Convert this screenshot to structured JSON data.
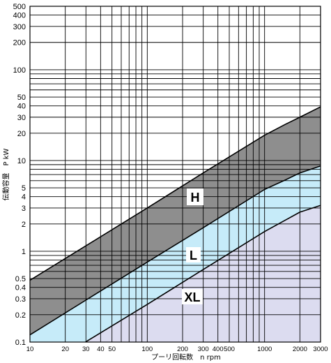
{
  "chart_data": {
    "type": "area",
    "x_scale": "log",
    "y_scale": "log",
    "xlim": [
      10,
      3000
    ],
    "ylim": [
      0.1,
      500
    ],
    "xlabel": "プーリ回転数　n rpm",
    "ylabel": "伝動容量　P kW",
    "x_ticks": [
      10,
      20,
      30,
      40,
      50,
      100,
      200,
      300,
      400,
      500,
      1000,
      2000,
      3000
    ],
    "y_ticks": [
      500,
      400,
      300,
      200,
      100,
      50,
      40,
      30,
      20,
      10,
      5,
      4,
      3,
      2,
      1,
      0.5,
      0.4,
      0.3,
      0.2,
      0.1
    ],
    "grid": true,
    "line_color": "#000000",
    "series": [
      {
        "name": "H",
        "color": "#8e8e8e",
        "upper": [
          [
            10,
            0.48
          ],
          [
            30,
            1.15
          ],
          [
            100,
            3.0
          ],
          [
            300,
            7.3
          ],
          [
            1000,
            19
          ],
          [
            1500,
            25
          ],
          [
            2000,
            30
          ],
          [
            3000,
            39
          ]
        ],
        "lower": [
          [
            10,
            0.12
          ],
          [
            30,
            0.29
          ],
          [
            100,
            0.76
          ],
          [
            300,
            1.82
          ],
          [
            1000,
            4.8
          ],
          [
            1500,
            6.1
          ],
          [
            2000,
            7.3
          ],
          [
            3000,
            8.7
          ]
        ]
      },
      {
        "name": "L",
        "color": "#c6ebf9",
        "upper": [
          [
            10,
            0.12
          ],
          [
            30,
            0.29
          ],
          [
            100,
            0.76
          ],
          [
            300,
            1.82
          ],
          [
            1000,
            4.8
          ],
          [
            1500,
            6.1
          ],
          [
            2000,
            7.3
          ],
          [
            3000,
            8.7
          ]
        ],
        "lower": [
          [
            10,
            0.1
          ],
          [
            29.7,
            0.1
          ],
          [
            100,
            0.26
          ],
          [
            300,
            0.63
          ],
          [
            1000,
            1.65
          ],
          [
            1500,
            2.2
          ],
          [
            2000,
            2.7
          ],
          [
            3000,
            3.2
          ]
        ]
      },
      {
        "name": "XL",
        "color": "#dcdcf0",
        "upper": [
          [
            29.7,
            0.1
          ],
          [
            100,
            0.26
          ],
          [
            300,
            0.63
          ],
          [
            1000,
            1.65
          ],
          [
            1500,
            2.2
          ],
          [
            2000,
            2.7
          ],
          [
            3000,
            3.2
          ]
        ],
        "lower": [
          [
            29.7,
            0.1
          ],
          [
            3000,
            0.1
          ]
        ]
      }
    ]
  }
}
